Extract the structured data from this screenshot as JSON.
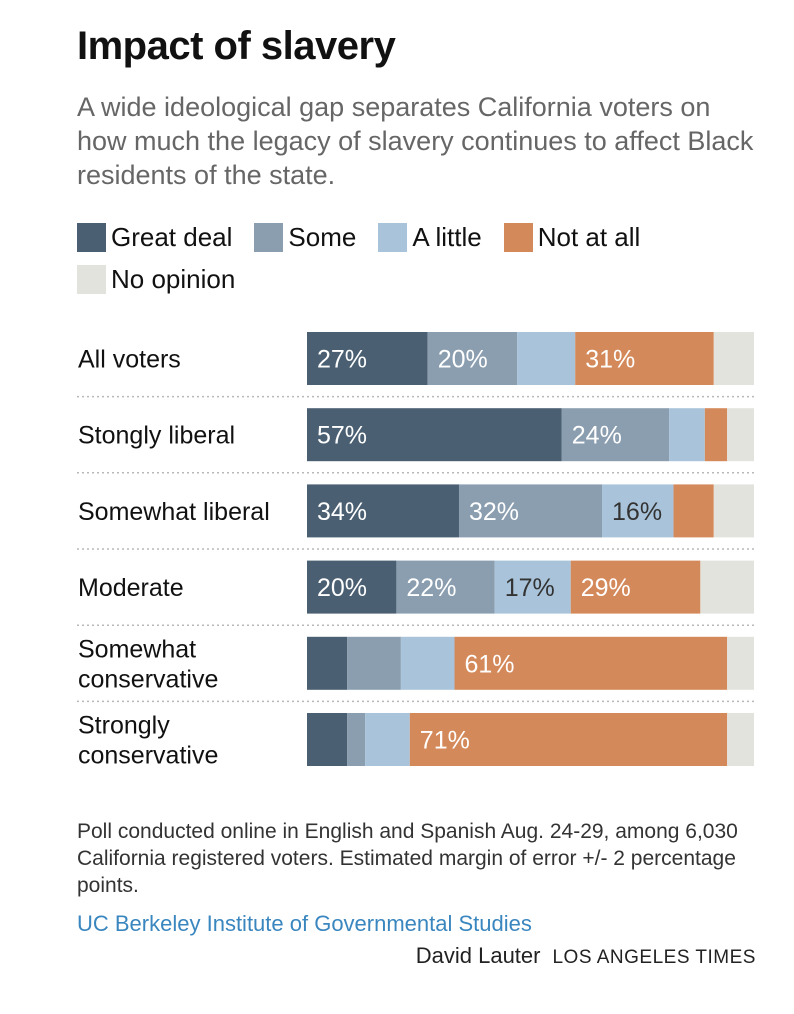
{
  "title": "Impact of slavery",
  "subtitle": "A wide ideological gap separates California voters on how much the legacy of slavery continues to affect Black residents of the state.",
  "colors": {
    "great_deal": "#4a5f72",
    "some": "#8a9eb0",
    "a_little": "#a9c4da",
    "not_at_all": "#d4895a",
    "no_opinion": "#e3e3de"
  },
  "chart_data": {
    "type": "bar",
    "orientation": "horizontal",
    "stacked": true,
    "categories": [
      "All voters",
      "Stongly liberal",
      "Somewhat liberal",
      "Moderate",
      "Somewhat conservative",
      "Strongly conservative"
    ],
    "category_lines": [
      [
        "All voters"
      ],
      [
        "Stongly liberal"
      ],
      [
        "Somewhat liberal"
      ],
      [
        "Moderate"
      ],
      [
        "Somewhat",
        "conservative"
      ],
      [
        "Strongly",
        "conservative"
      ]
    ],
    "series": [
      {
        "name": "Great deal",
        "color": "#4a5f72",
        "values": [
          27,
          57,
          34,
          20,
          9,
          9
        ],
        "labels": [
          "27%",
          "57%",
          "34%",
          "20%",
          "",
          ""
        ],
        "label_color": "#ffffff"
      },
      {
        "name": "Some",
        "color": "#8a9eb0",
        "values": [
          20,
          24,
          32,
          22,
          12,
          4
        ],
        "labels": [
          "20%",
          "24%",
          "32%",
          "22%",
          "",
          ""
        ],
        "label_color": "#ffffff"
      },
      {
        "name": "A little",
        "color": "#a9c4da",
        "values": [
          13,
          8,
          16,
          17,
          12,
          10
        ],
        "labels": [
          "",
          "",
          "16%",
          "17%",
          "",
          ""
        ],
        "label_color": "#333333"
      },
      {
        "name": "Not at all",
        "color": "#d4895a",
        "values": [
          31,
          5,
          9,
          29,
          61,
          71
        ],
        "labels": [
          "31%",
          "",
          "",
          "29%",
          "61%",
          "71%"
        ],
        "label_color": "#ffffff"
      },
      {
        "name": "No opinion",
        "color": "#e3e3de",
        "values": [
          9,
          6,
          9,
          12,
          6,
          6
        ],
        "labels": [
          "",
          "",
          "",
          "",
          "",
          ""
        ],
        "label_color": "#333333"
      }
    ],
    "xlim": [
      0,
      100
    ],
    "legend_position": "top"
  },
  "notes": "Poll conducted online in English and Spanish Aug. 24-29, among 6,030 California registered voters. Estimated margin of error +/- 2 percentage points.",
  "source": "UC Berkeley Institute of Governmental Studies",
  "author": "David Lauter",
  "publisher": "LOS ANGELES TIMES"
}
